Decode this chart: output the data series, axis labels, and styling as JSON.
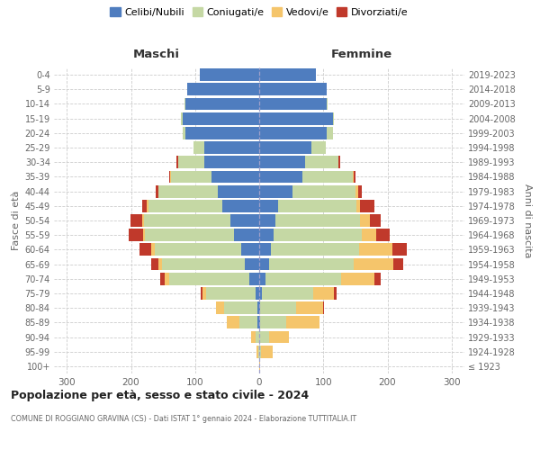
{
  "age_groups": [
    "100+",
    "95-99",
    "90-94",
    "85-89",
    "80-84",
    "75-79",
    "70-74",
    "65-69",
    "60-64",
    "55-59",
    "50-54",
    "45-49",
    "40-44",
    "35-39",
    "30-34",
    "25-29",
    "20-24",
    "15-19",
    "10-14",
    "5-9",
    "0-4"
  ],
  "birth_years": [
    "≤ 1923",
    "1924-1928",
    "1929-1933",
    "1934-1938",
    "1939-1943",
    "1944-1948",
    "1949-1953",
    "1954-1958",
    "1959-1963",
    "1964-1968",
    "1969-1973",
    "1974-1978",
    "1979-1983",
    "1984-1988",
    "1989-1993",
    "1994-1998",
    "1999-2003",
    "2004-2008",
    "2009-2013",
    "2014-2018",
    "2019-2023"
  ],
  "maschi": {
    "celibi": [
      0,
      0,
      0,
      3,
      3,
      5,
      15,
      22,
      28,
      40,
      45,
      58,
      65,
      75,
      85,
      85,
      115,
      120,
      115,
      112,
      92
    ],
    "coniugati": [
      0,
      2,
      5,
      28,
      52,
      78,
      125,
      130,
      135,
      138,
      135,
      115,
      92,
      62,
      42,
      18,
      5,
      2,
      2,
      0,
      0
    ],
    "vedovi": [
      0,
      2,
      8,
      20,
      12,
      5,
      8,
      5,
      5,
      3,
      3,
      2,
      0,
      2,
      0,
      0,
      0,
      0,
      0,
      0,
      0
    ],
    "divorziati": [
      0,
      0,
      0,
      0,
      0,
      3,
      6,
      12,
      18,
      22,
      18,
      8,
      5,
      2,
      2,
      0,
      0,
      0,
      0,
      0,
      0
    ]
  },
  "femmine": {
    "celibi": [
      0,
      0,
      0,
      2,
      2,
      4,
      10,
      15,
      18,
      22,
      25,
      30,
      52,
      68,
      72,
      82,
      105,
      115,
      105,
      105,
      88
    ],
    "coniugati": [
      0,
      3,
      15,
      40,
      55,
      80,
      118,
      132,
      138,
      138,
      132,
      122,
      98,
      78,
      52,
      22,
      10,
      2,
      2,
      0,
      0
    ],
    "vedovi": [
      2,
      18,
      32,
      52,
      42,
      32,
      52,
      62,
      52,
      22,
      16,
      5,
      5,
      2,
      0,
      0,
      0,
      0,
      0,
      0,
      0
    ],
    "divorziati": [
      0,
      0,
      0,
      0,
      2,
      5,
      10,
      15,
      22,
      22,
      16,
      22,
      5,
      2,
      2,
      0,
      0,
      0,
      0,
      0,
      0
    ]
  },
  "colors": {
    "celibi": "#4f7dbf",
    "coniugati": "#c5d8a4",
    "vedovi": "#f5c56b",
    "divorziati": "#c0392b"
  },
  "xlim": 320,
  "xticks": [
    -300,
    -200,
    -100,
    0,
    100,
    200,
    300
  ],
  "title": "Popolazione per età, sesso e stato civile - 2024",
  "subtitle": "COMUNE DI ROGGIANO GRAVINA (CS) - Dati ISTAT 1° gennaio 2024 - Elaborazione TUTTITALIA.IT",
  "xlabel_left": "Maschi",
  "xlabel_right": "Femmine",
  "ylabel_left": "Fasce di età",
  "ylabel_right": "Anni di nascita",
  "legend_labels": [
    "Celibi/Nubili",
    "Coniugati/e",
    "Vedovi/e",
    "Divorziati/e"
  ],
  "background_color": "#ffffff",
  "grid_color": "#cccccc",
  "bar_height": 0.85
}
